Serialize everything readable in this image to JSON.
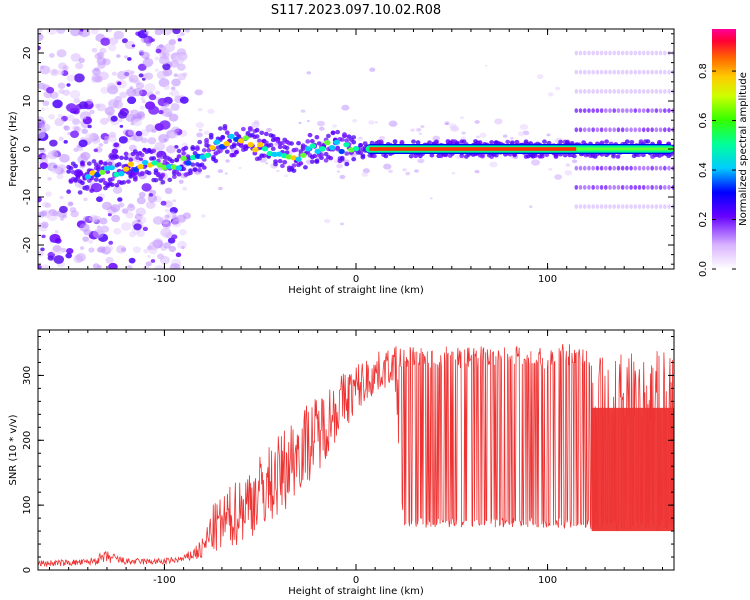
{
  "figure": {
    "title": "S117.2023.097.10.02.R08"
  },
  "chart_data": [
    {
      "type": "heatmap",
      "xlabel": "Height of straight line (km)",
      "ylabel": "Frequency (Hz)",
      "xlim": [
        -166,
        166
      ],
      "ylim": [
        -25,
        25
      ],
      "x_ticks": [
        -100,
        0,
        100
      ],
      "y_ticks": [
        -20,
        -10,
        0,
        10,
        20
      ],
      "colorbar": {
        "label": "Normalized spectral amplitude",
        "range": [
          0.0,
          0.97
        ],
        "ticks": [
          "0.0",
          "0.2",
          "0.4",
          "0.6",
          "0.8"
        ]
      },
      "ridge": {
        "x": [
          -140,
          -130,
          -120,
          -110,
          -100,
          -90,
          -80,
          -70,
          -60,
          -50,
          -40,
          -30,
          -20,
          -10,
          0,
          10,
          50,
          100,
          115,
          166
        ],
        "y": [
          -6,
          -5,
          -4,
          -3,
          -4,
          -3,
          -1,
          1.5,
          2,
          0.5,
          -1,
          -1.5,
          0.5,
          0.5,
          -0.5,
          0,
          0,
          0,
          0,
          0
        ]
      },
      "harmonic_bands_hz": [
        -12,
        -8,
        -4,
        4,
        8,
        12,
        16,
        20
      ],
      "harmonic_band_start_km": 115
    },
    {
      "type": "line",
      "xlabel": "Height of straight line (km)",
      "ylabel": "SNR (10 * v/v)",
      "xlim": [
        -166,
        166
      ],
      "ylim": [
        0,
        370
      ],
      "x_ticks": [
        -100,
        0,
        100
      ],
      "y_ticks": [
        0,
        100,
        200,
        300
      ],
      "color": "#ee3333",
      "envelope": {
        "x": [
          -166,
          -140,
          -130,
          -120,
          -100,
          -90,
          -80,
          -75,
          -70,
          -60,
          -50,
          -40,
          -30,
          -20,
          -10,
          0,
          10,
          20,
          25,
          30,
          40,
          60,
          80,
          100,
          110,
          122,
          123,
          166
        ],
        "lower": [
          5,
          7,
          10,
          8,
          8,
          12,
          15,
          25,
          25,
          40,
          60,
          80,
          120,
          150,
          200,
          240,
          270,
          290,
          60,
          65,
          65,
          65,
          65,
          65,
          65,
          65,
          60,
          60
        ],
        "upper": [
          15,
          17,
          30,
          18,
          18,
          22,
          50,
          100,
          115,
          150,
          180,
          210,
          250,
          270,
          300,
          320,
          335,
          345,
          345,
          345,
          345,
          345,
          345,
          345,
          350,
          340,
          330,
          340
        ]
      },
      "spike_region_start_km": 22,
      "dense_region_start_km": 123
    }
  ]
}
